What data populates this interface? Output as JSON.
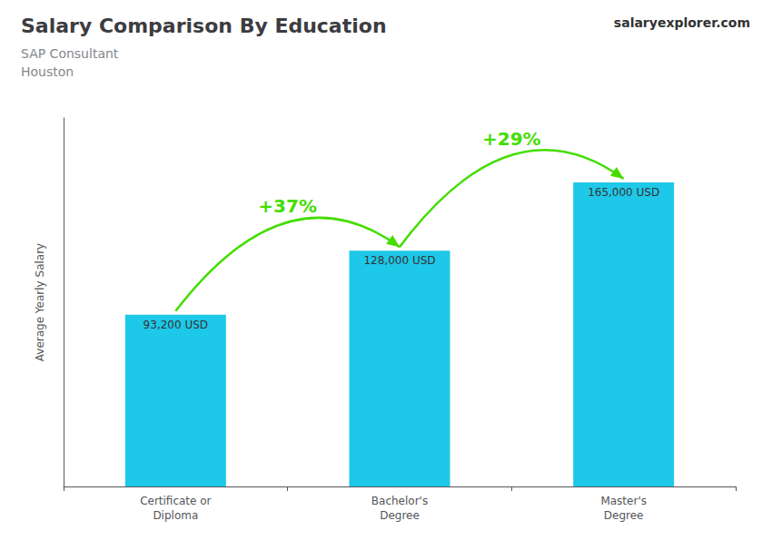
{
  "chart_data": {
    "type": "bar",
    "title": "Salary Comparison By Education",
    "subtitle": [
      "SAP Consultant",
      "Houston"
    ],
    "ylabel": "Average Yearly Salary",
    "categories": [
      "Certificate or\nDiploma",
      "Bachelor's\nDegree",
      "Master's\nDegree"
    ],
    "values": [
      93200,
      128000,
      165000
    ],
    "value_labels": [
      "93,200 USD",
      "128,000 USD",
      "165,000 USD"
    ],
    "data_labels": true,
    "color": "#1ec8e8",
    "ylim": [
      0,
      200000
    ],
    "grid": false,
    "tick_labels": "x",
    "annotations": [
      {
        "text": "+37%",
        "from": "Certificate or\nDiploma",
        "to": "Bachelor's\nDegree",
        "color": "#44dd00"
      },
      {
        "text": "+29%",
        "from": "Bachelor's\nDegree",
        "to": "Master's\nDegree",
        "color": "#44dd00"
      },
      {
        "text": "salaryexplorer.com"
      }
    ]
  }
}
